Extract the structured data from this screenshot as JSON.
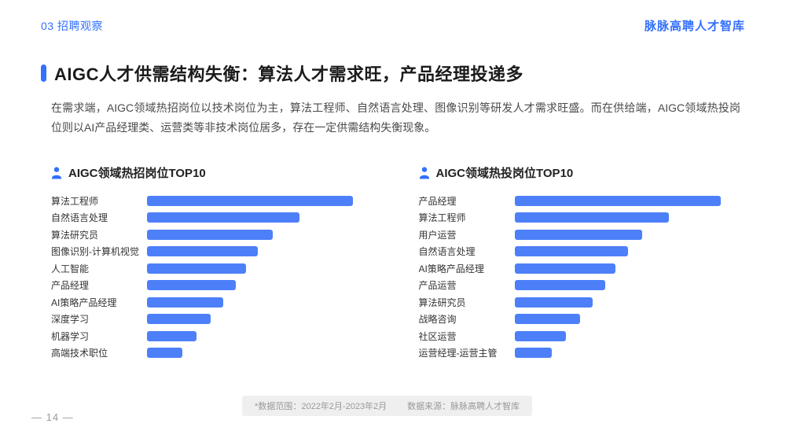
{
  "colors": {
    "accent": "#3370FF",
    "bar": "#4D80F8"
  },
  "header": {
    "section": "03 招聘观察",
    "brand": "脉脉高聘人才智库"
  },
  "title": "AIGC人才供需结构失衡：算法人才需求旺，产品经理投递多",
  "paragraph": "在需求端，AIGC领域热招岗位以技术岗位为主，算法工程师、自然语言处理、图像识别等研发人才需求旺盛。而在供给端，AIGC领域热投岗位则以AI产品经理类、运营类等非技术岗位居多，存在一定供需结构失衡现象。",
  "footer": {
    "note_range": "*数据范围：2022年2月-2023年2月",
    "note_source": "数据来源：脉脉高聘人才智库",
    "page": "— 14 —"
  },
  "chart_data": [
    {
      "type": "bar",
      "orientation": "horizontal",
      "title": "AIGC领域热招岗位TOP10",
      "legend": "none",
      "grid": "off",
      "axis_labels": "none",
      "value_note": "relative bar length, % of longest bar (no numeric axis shown)",
      "categories": [
        "算法工程师",
        "自然语言处理",
        "算法研究员",
        "图像识别-计算机视觉",
        "人工智能",
        "产品经理",
        "AI策略产品经理",
        "深度学习",
        "机器学习",
        "高端技术职位"
      ],
      "values": [
        100,
        74,
        61,
        54,
        48,
        43,
        37,
        31,
        24,
        17
      ]
    },
    {
      "type": "bar",
      "orientation": "horizontal",
      "title": "AIGC领域热投岗位TOP10",
      "legend": "none",
      "grid": "off",
      "axis_labels": "none",
      "value_note": "relative bar length, % of longest bar (no numeric axis shown)",
      "categories": [
        "产品经理",
        "算法工程师",
        "用户运营",
        "自然语言处理",
        "AI策略产品经理",
        "产品运营",
        "算法研究员",
        "战略咨询",
        "社区运营",
        "运营经理-运营主管"
      ],
      "values": [
        100,
        75,
        62,
        55,
        49,
        44,
        38,
        32,
        25,
        18
      ]
    }
  ]
}
